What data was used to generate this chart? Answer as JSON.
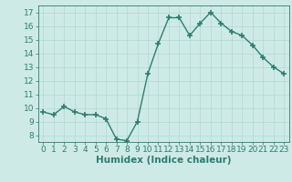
{
  "x": [
    0,
    1,
    2,
    3,
    4,
    5,
    6,
    7,
    8,
    9,
    10,
    11,
    12,
    13,
    14,
    15,
    16,
    17,
    18,
    19,
    20,
    21,
    22,
    23
  ],
  "y": [
    9.7,
    9.5,
    10.1,
    9.7,
    9.5,
    9.5,
    9.2,
    7.7,
    7.6,
    9.0,
    12.5,
    14.7,
    16.6,
    16.6,
    15.3,
    16.2,
    17.0,
    16.2,
    15.6,
    15.3,
    14.6,
    13.7,
    13.0,
    12.5
  ],
  "line_color": "#2e7d6e",
  "marker": "+",
  "marker_size": 4,
  "marker_linewidth": 1.2,
  "line_width": 1.0,
  "xlabel": "Humidex (Indice chaleur)",
  "xlabel_fontsize": 7.5,
  "yticks": [
    8,
    9,
    10,
    11,
    12,
    13,
    14,
    15,
    16,
    17
  ],
  "xlim": [
    -0.5,
    23.5
  ],
  "ylim": [
    7.5,
    17.5
  ],
  "bg_color": "#ceeae7",
  "grid_color": "#b0d8d4",
  "tick_fontsize": 6.5
}
